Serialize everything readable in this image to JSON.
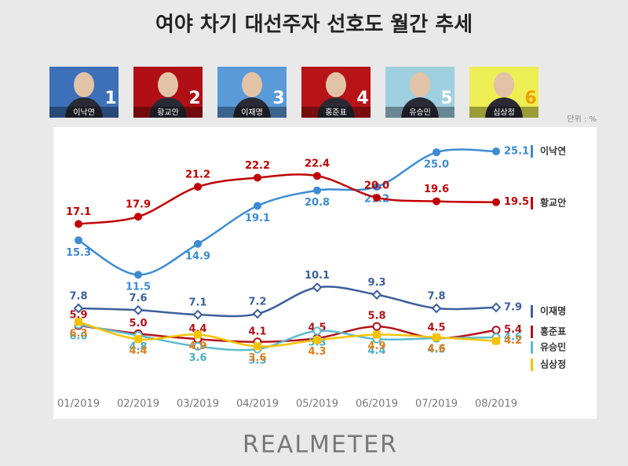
{
  "chart_data": {
    "type": "line",
    "title": "여야 차기 대선주자 선호도 월간 추세",
    "unit_note": "단위 : %",
    "categories": [
      "01/2019",
      "02/2019",
      "03/2019",
      "04/2019",
      "05/2019",
      "06/2019",
      "07/2019",
      "08/2019"
    ],
    "series": [
      {
        "name": "이낙연",
        "color": "#3d8bd4",
        "label_color": "#3d8bd4",
        "marker": "circle",
        "values": [
          15.3,
          11.5,
          14.9,
          19.1,
          20.8,
          21.2,
          25.0,
          25.1
        ],
        "value_labels": [
          "15.3",
          "11.5",
          "14.9",
          "19.1",
          "20.8",
          "21.2",
          "25.0",
          "25.1"
        ]
      },
      {
        "name": "황교안",
        "color": "#c00000",
        "label_color": "#c00000",
        "marker": "circle",
        "values": [
          17.1,
          17.9,
          21.2,
          22.2,
          22.4,
          20.0,
          19.6,
          19.5
        ],
        "value_labels": [
          "17.1",
          "17.9",
          "21.2",
          "22.2",
          "22.4",
          "20.0",
          "19.6",
          "19.5"
        ]
      },
      {
        "name": "이재명",
        "color": "#3b5f9c",
        "label_color": "#3b5f9c",
        "marker": "diamond",
        "values": [
          7.8,
          7.6,
          7.1,
          7.2,
          10.1,
          9.3,
          7.8,
          7.9
        ],
        "value_labels": [
          "7.8",
          "7.6",
          "7.1",
          "7.2",
          "10.1",
          "9.3",
          "7.8",
          "7.9"
        ]
      },
      {
        "name": "홍준표",
        "color": "#b3121b",
        "label_color": "#b3121b",
        "marker": "ring",
        "values": [
          5.9,
          5.0,
          4.4,
          4.1,
          4.5,
          5.8,
          4.5,
          5.4
        ],
        "value_labels": [
          "5.9",
          "5.0",
          "4.4",
          "4.1",
          "4.5",
          "5.8",
          "4.5",
          "5.4"
        ]
      },
      {
        "name": "유승민",
        "color": "#5bbccc",
        "label_color": "#4aaec0",
        "marker": "ring",
        "values": [
          6.0,
          4.8,
          3.6,
          3.3,
          5.3,
          4.4,
          4.5,
          4.6
        ],
        "value_labels": [
          "6.0",
          "4.8",
          "3.6",
          "3.3",
          "5.3",
          "4.4",
          "4.5",
          "4.6"
        ]
      },
      {
        "name": "심상정",
        "color": "#f7c200",
        "label_color": "#e07f1f",
        "marker": "square",
        "values": [
          6.3,
          4.4,
          4.9,
          3.6,
          4.3,
          4.9,
          4.6,
          4.2
        ],
        "value_labels": [
          "6.3",
          "4.4",
          "4.9",
          "3.6",
          "4.3",
          "4.9",
          "4.6",
          "4.2"
        ]
      }
    ]
  },
  "card_numbers": [
    1,
    2,
    3,
    4,
    5,
    6
  ],
  "brand": "REALMETER"
}
